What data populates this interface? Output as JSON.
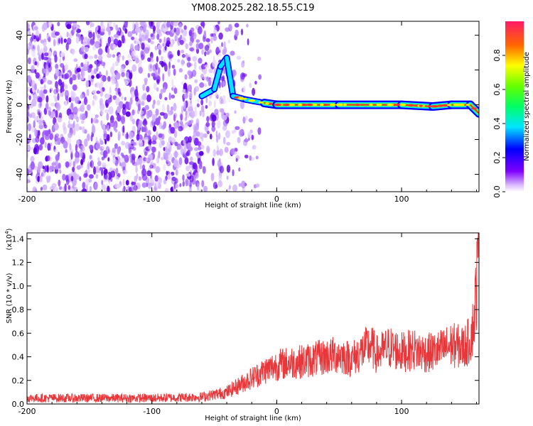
{
  "figure_title": "YM08.2025.282.18.55.C19",
  "chart_data": [
    {
      "type": "heatmap",
      "name": "spectrogram",
      "xlabel": "Height of straight line (km)",
      "ylabel": "Frequency (Hz)",
      "xlim": [
        -200,
        162
      ],
      "ylim": [
        -50,
        48
      ],
      "xticks": [
        -200,
        -100,
        0,
        100
      ],
      "yticks": [
        -40,
        -20,
        0,
        20,
        40
      ],
      "xtick_labels": [
        "-200",
        "-100",
        "0",
        "100"
      ],
      "ytick_labels": [
        "-40",
        "-20",
        "0",
        "20",
        "40"
      ],
      "description_of_values": "Normalized spectral amplitude vs height and frequency",
      "noise_region_x": [
        -200,
        -30
      ],
      "signal_band": [
        {
          "x": -60,
          "f": 5
        },
        {
          "x": -50,
          "f": 9
        },
        {
          "x": -45,
          "f": 22
        },
        {
          "x": -40,
          "f": 27
        },
        {
          "x": -35,
          "f": 5
        },
        {
          "x": -25,
          "f": 3
        },
        {
          "x": -10,
          "f": 1
        },
        {
          "x": 0,
          "f": 0
        },
        {
          "x": 50,
          "f": 0
        },
        {
          "x": 100,
          "f": 0
        },
        {
          "x": 125,
          "f": -1
        },
        {
          "x": 140,
          "f": 0
        },
        {
          "x": 155,
          "f": 0
        },
        {
          "x": 162,
          "f": -5
        }
      ]
    },
    {
      "type": "colorbar",
      "name": "amplitude-colorbar",
      "label": "Normalized spectral amplitude",
      "range": [
        0,
        1
      ],
      "ticks": [
        0.0,
        0.2,
        0.4,
        0.6,
        0.8
      ],
      "tick_labels": [
        "0.0",
        "0.2",
        "0.4",
        "0.6",
        "0.8"
      ]
    },
    {
      "type": "line",
      "name": "snr-plot",
      "xlabel": "Height of straight line (km)",
      "ylabel": "SNR (10 * v/v)",
      "scale_label_prefix": "(x10",
      "scale_label_exp": "4",
      "scale_label_suffix": ")",
      "xlim": [
        -200,
        162
      ],
      "ylim": [
        0,
        1.45
      ],
      "xticks": [
        -200,
        -100,
        0,
        100
      ],
      "xtick_labels": [
        "-200",
        "-100",
        "0",
        "100"
      ],
      "yticks": [
        0.0,
        0.2,
        0.4,
        0.6,
        0.8,
        1.0,
        1.2,
        1.4
      ],
      "ytick_labels": [
        "0.0",
        "0.2",
        "0.4",
        "0.6",
        "0.8",
        "1.0",
        "1.2",
        "1.4"
      ],
      "series": [
        {
          "name": "SNR",
          "x": [
            -200,
            -150,
            -100,
            -60,
            -40,
            -30,
            -20,
            -10,
            0,
            10,
            20,
            30,
            40,
            50,
            60,
            70,
            75,
            80,
            90,
            100,
            110,
            120,
            130,
            140,
            150,
            155,
            158,
            160,
            162
          ],
          "y": [
            0.05,
            0.05,
            0.05,
            0.06,
            0.1,
            0.16,
            0.22,
            0.28,
            0.33,
            0.35,
            0.36,
            0.38,
            0.4,
            0.42,
            0.38,
            0.46,
            0.5,
            0.42,
            0.48,
            0.44,
            0.46,
            0.43,
            0.45,
            0.5,
            0.48,
            0.55,
            0.7,
            1.0,
            1.4
          ]
        }
      ],
      "color": "#e8373a"
    }
  ]
}
